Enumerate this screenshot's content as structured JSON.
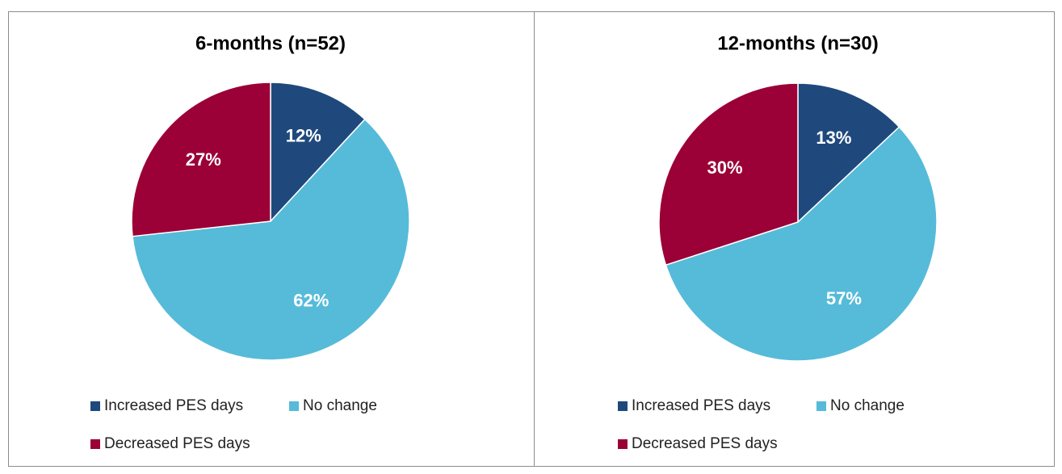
{
  "chart_data": [
    {
      "type": "pie",
      "title": "6-months (n=52)",
      "categories": [
        "Increased PES days",
        "No change",
        "Decreased PES days"
      ],
      "values": [
        12,
        62,
        27
      ],
      "value_labels": [
        "12%",
        "62%",
        "27%"
      ],
      "colors": [
        "#1f497d",
        "#56bbd9",
        "#9b0036"
      ]
    },
    {
      "type": "pie",
      "title": "12-months (n=30)",
      "categories": [
        "Increased PES days",
        "No change",
        "Decreased PES days"
      ],
      "values": [
        13,
        57,
        30
      ],
      "value_labels": [
        "13%",
        "57%",
        "30%"
      ],
      "colors": [
        "#1f497d",
        "#56bbd9",
        "#9b0036"
      ]
    }
  ]
}
